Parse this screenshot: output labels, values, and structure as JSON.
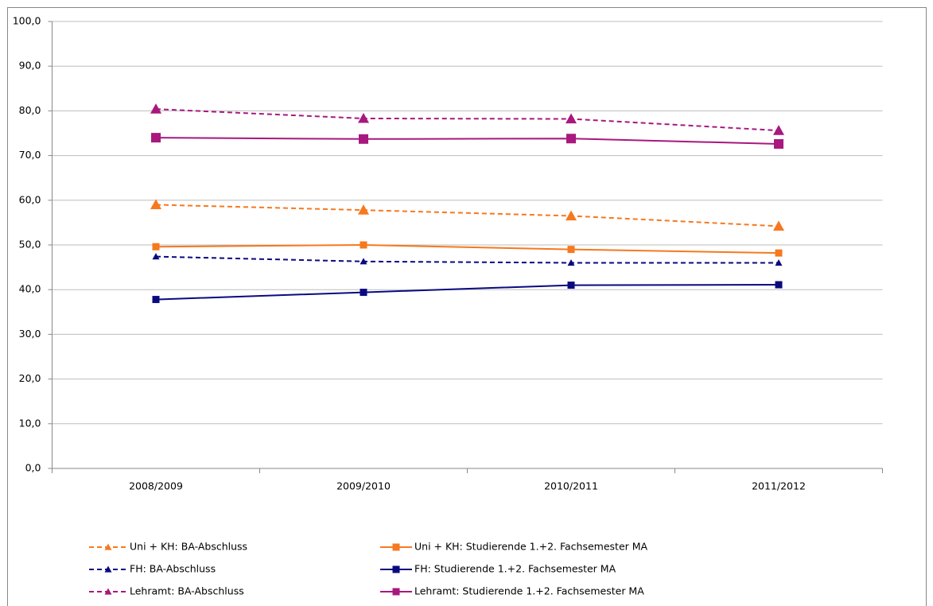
{
  "chart_data": {
    "type": "line",
    "categories": [
      "2008/2009",
      "2009/2010",
      "2010/2011",
      "2011/2012"
    ],
    "ylim": [
      0,
      100
    ],
    "yticks": [
      {
        "value": 0,
        "label": "0,0"
      },
      {
        "value": 10,
        "label": "10,0"
      },
      {
        "value": 20,
        "label": "20,0"
      },
      {
        "value": 30,
        "label": "30,0"
      },
      {
        "value": 40,
        "label": "40,0"
      },
      {
        "value": 50,
        "label": "50,0"
      },
      {
        "value": 60,
        "label": "60,0"
      },
      {
        "value": 70,
        "label": "70,0"
      },
      {
        "value": 80,
        "label": "80,0"
      },
      {
        "value": 90,
        "label": "90,0"
      },
      {
        "value": 100,
        "label": "100,0"
      }
    ],
    "grid": true,
    "series": [
      {
        "name": "Uni + KH: BA-Abschluss",
        "color": "#f7781e",
        "dashed": true,
        "marker": "triangle",
        "values": [
          59.0,
          57.8,
          56.5,
          54.2
        ]
      },
      {
        "name": "Uni + KH: Studierende 1.+2. Fachsemester MA",
        "color": "#f7781e",
        "dashed": false,
        "marker": "square",
        "values": [
          49.6,
          50.0,
          49.0,
          48.2
        ]
      },
      {
        "name": "FH: BA-Abschluss",
        "color": "#0a0a80",
        "dashed": true,
        "marker": "triangle",
        "values": [
          47.4,
          46.3,
          46.0,
          46.0
        ]
      },
      {
        "name": "FH: Studierende 1.+2. Fachsemester MA",
        "color": "#0a0a80",
        "dashed": false,
        "marker": "square",
        "values": [
          37.8,
          39.4,
          41.0,
          41.1
        ]
      },
      {
        "name": "Lehramt: BA-Abschluss",
        "color": "#a8187e",
        "dashed": true,
        "marker": "triangle",
        "values": [
          80.4,
          78.3,
          78.2,
          75.6
        ]
      },
      {
        "name": "Lehramt: Studierende 1.+2. Fachsemester MA",
        "color": "#a8187e",
        "dashed": false,
        "marker": "square",
        "values": [
          74.0,
          73.7,
          73.8,
          72.6
        ]
      }
    ]
  }
}
